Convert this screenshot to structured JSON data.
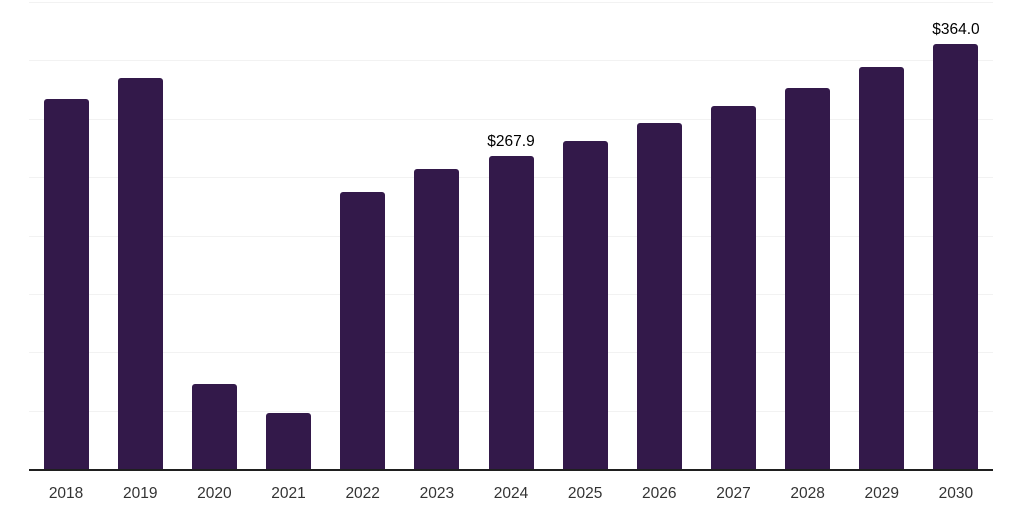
{
  "chart_data": {
    "type": "bar",
    "title": "",
    "xlabel": "",
    "ylabel": "",
    "categories": [
      "2018",
      "2019",
      "2020",
      "2021",
      "2022",
      "2023",
      "2024",
      "2025",
      "2026",
      "2027",
      "2028",
      "2029",
      "2030"
    ],
    "values": [
      316.9,
      335.3,
      73.1,
      47.7,
      237.6,
      256.8,
      267.9,
      281.3,
      296.2,
      310.8,
      326.7,
      344.7,
      364.0
    ],
    "data_labels": {
      "2024": "$267.9",
      "2030": "$364.0"
    },
    "ylim": [
      0,
      400
    ],
    "grid_step": 50,
    "grid": "horizontal",
    "legend_position": "none",
    "bar_color": "#33194a",
    "gridline_color": "#f2f2f2",
    "axis_line_color": "#1f1f1f",
    "tick_label_color": "#333333",
    "data_label_color": "#000000",
    "background_color": "#ffffff"
  }
}
